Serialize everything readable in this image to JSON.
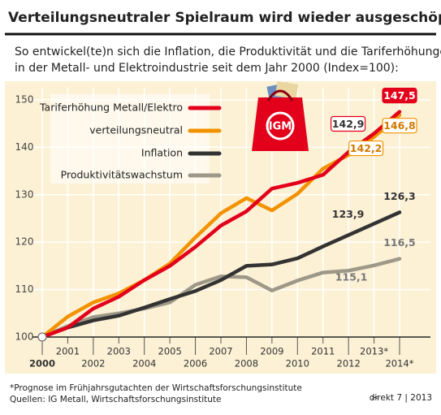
{
  "chart_data": {
    "type": "line",
    "title": "Verteilungsneutraler Spielraum wird wieder ausgeschöpft",
    "subtitle": [
      "So entwickel(te)n sich die Inflation, die Produktivität und die Tariferhöhungen",
      "in der Metall- und Elektroindustrie seit dem Jahr 2000 (Index=100):"
    ],
    "categories": [
      "2000",
      "2001",
      "2002",
      "2003",
      "2004",
      "2005",
      "2006",
      "2007",
      "2008",
      "2009",
      "2010",
      "2011",
      "2012",
      "2013*",
      "2014*"
    ],
    "ylim": [
      100,
      150
    ],
    "yticks": [
      100,
      110,
      120,
      130,
      140,
      150
    ],
    "grid": true,
    "series": [
      {
        "name": "Tariferhöhung Metall/Elektro",
        "color": "#e3001b",
        "values": [
          100,
          102,
          106,
          108.5,
          112,
          115,
          119,
          123.5,
          126.5,
          131.3,
          132.5,
          134.2,
          139,
          142.9,
          147.5
        ],
        "value_labels": [
          null,
          null,
          null,
          null,
          null,
          null,
          null,
          null,
          null,
          null,
          null,
          null,
          null,
          "142,9",
          "147,5"
        ]
      },
      {
        "name": "verteilungsneutral",
        "color": "#f39200",
        "values": [
          100,
          104.3,
          107.3,
          109.2,
          112,
          115.5,
          121,
          126.1,
          129.3,
          126.7,
          130.2,
          135.5,
          138.4,
          142.2,
          146.8
        ],
        "value_labels": [
          null,
          null,
          null,
          null,
          null,
          null,
          null,
          null,
          null,
          null,
          null,
          null,
          null,
          "142,2",
          "146,8"
        ]
      },
      {
        "name": "Inflation",
        "color": "#333333",
        "values": [
          100,
          102,
          103.5,
          104.5,
          106.2,
          108,
          109.7,
          112,
          115,
          115.3,
          116.6,
          119.1,
          121.5,
          123.9,
          126.3
        ],
        "value_labels": [
          null,
          null,
          null,
          null,
          null,
          null,
          null,
          null,
          null,
          null,
          null,
          null,
          null,
          "123,9",
          "126,3"
        ]
      },
      {
        "name": "Produktivitätswachstum",
        "color": "#9d9888",
        "values": [
          100,
          102.3,
          104.2,
          105,
          106,
          107.3,
          111,
          112.8,
          112.6,
          109.8,
          111.9,
          113.6,
          114,
          115.1,
          116.5
        ],
        "value_labels": [
          null,
          null,
          null,
          null,
          null,
          null,
          null,
          null,
          null,
          null,
          null,
          null,
          null,
          "115,1",
          "116,5"
        ]
      }
    ]
  },
  "footnote": "*Prognose im Frühjahrsgutachten der Wirtschaftsforschungsinstitute",
  "source": "Quellen: IG Metall, Wirtschaftsforschungsinstitute",
  "publication": "direkt 7 | 2013"
}
